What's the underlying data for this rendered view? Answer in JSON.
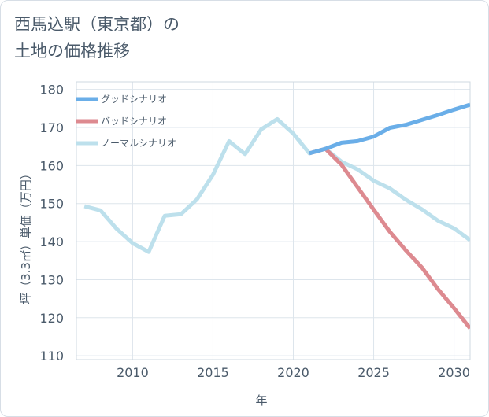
{
  "chart_data": {
    "type": "line",
    "title": "西馬込駅（東京都）の\n土地の価格推移",
    "xlabel": "年",
    "ylabel": "坪（3.3㎡）単価（万円）",
    "xlim": [
      2006.5,
      2031
    ],
    "ylim": [
      109,
      182
    ],
    "xticks": [
      2010,
      2015,
      2020,
      2025,
      2030
    ],
    "yticks": [
      110,
      120,
      130,
      140,
      150,
      160,
      170,
      180
    ],
    "grid": true,
    "legend_position": "top-left",
    "series": [
      {
        "name": "グッドシナリオ",
        "color": "#6aaee8",
        "x": [
          2021,
          2022,
          2023,
          2024,
          2025,
          2026,
          2027,
          2028,
          2029,
          2030,
          2031
        ],
        "y": [
          163.2,
          164.4,
          166.0,
          166.4,
          167.6,
          169.9,
          170.7,
          172.0,
          173.3,
          174.7,
          176.0
        ]
      },
      {
        "name": "バッドシナリオ",
        "color": "#dd8a90",
        "x": [
          2021,
          2022,
          2023,
          2024,
          2025,
          2026,
          2027,
          2028,
          2029,
          2030,
          2031
        ],
        "y": [
          163.2,
          164.4,
          160.2,
          154.3,
          148.4,
          142.6,
          137.7,
          133.2,
          127.5,
          122.5,
          117.2
        ]
      },
      {
        "name": "ノーマルシナリオ",
        "color": "#bde0ec",
        "x": [
          2007,
          2008,
          2009,
          2010,
          2011,
          2012,
          2013,
          2014,
          2015,
          2016,
          2017,
          2018,
          2019,
          2020,
          2021,
          2022,
          2023,
          2024,
          2025,
          2026,
          2027,
          2028,
          2029,
          2030,
          2031
        ],
        "y": [
          149.3,
          148.2,
          143.4,
          139.6,
          137.3,
          146.8,
          147.2,
          151.1,
          157.6,
          166.4,
          163.0,
          169.5,
          172.2,
          168.4,
          163.2,
          164.4,
          161.0,
          159.0,
          156.0,
          154.0,
          151.0,
          148.5,
          145.5,
          143.5,
          140.4
        ]
      }
    ]
  }
}
